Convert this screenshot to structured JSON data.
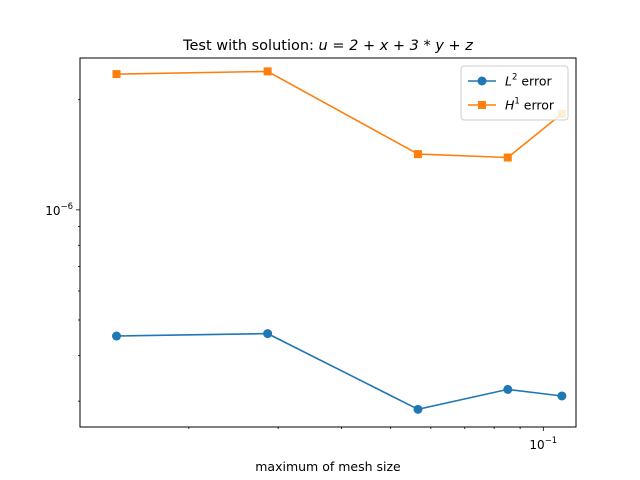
{
  "chart_data": {
    "type": "line",
    "title_prefix": "Test with solution: ",
    "title_math": "u = 2 + x + 3 * y + z",
    "xlabel": "maximum of mesh size",
    "ylabel": "",
    "xscale": "log",
    "yscale": "log",
    "xlim": [
      0.0122,
      0.116
    ],
    "ylim": [
      2.55e-07,
      2.6e-06
    ],
    "x_tick_labels": [
      {
        "value": 0.1,
        "base": "10",
        "exponent": "−1"
      }
    ],
    "y_tick_labels": [
      {
        "value": 1e-06,
        "base": "10",
        "exponent": "−6"
      }
    ],
    "x_minor_ticks": [
      0.02,
      0.03,
      0.04,
      0.05,
      0.06,
      0.07,
      0.08,
      0.09
    ],
    "y_minor_ticks": [
      3e-07,
      4e-07,
      5e-07,
      6e-07,
      7e-07,
      8e-07,
      9e-07,
      2e-06
    ],
    "grid": false,
    "legend_position": "top-right",
    "series": [
      {
        "name_base": "L",
        "name_sup": "2",
        "name_rest": " error",
        "color": "#1f77b4",
        "marker": "circle",
        "x": [
          0.0144,
          0.0286,
          0.0566,
          0.0851,
          0.1088
        ],
        "y": [
          4.52e-07,
          4.59e-07,
          2.85e-07,
          3.23e-07,
          3.1e-07
        ]
      },
      {
        "name_base": "H",
        "name_sup": "1",
        "name_rest": " error",
        "color": "#ff7f0e",
        "marker": "square",
        "x": [
          0.0144,
          0.0286,
          0.0566,
          0.0851,
          0.1088
        ],
        "y": [
          2.35e-06,
          2.39e-06,
          1.42e-06,
          1.39e-06,
          1.83e-06
        ]
      }
    ]
  }
}
